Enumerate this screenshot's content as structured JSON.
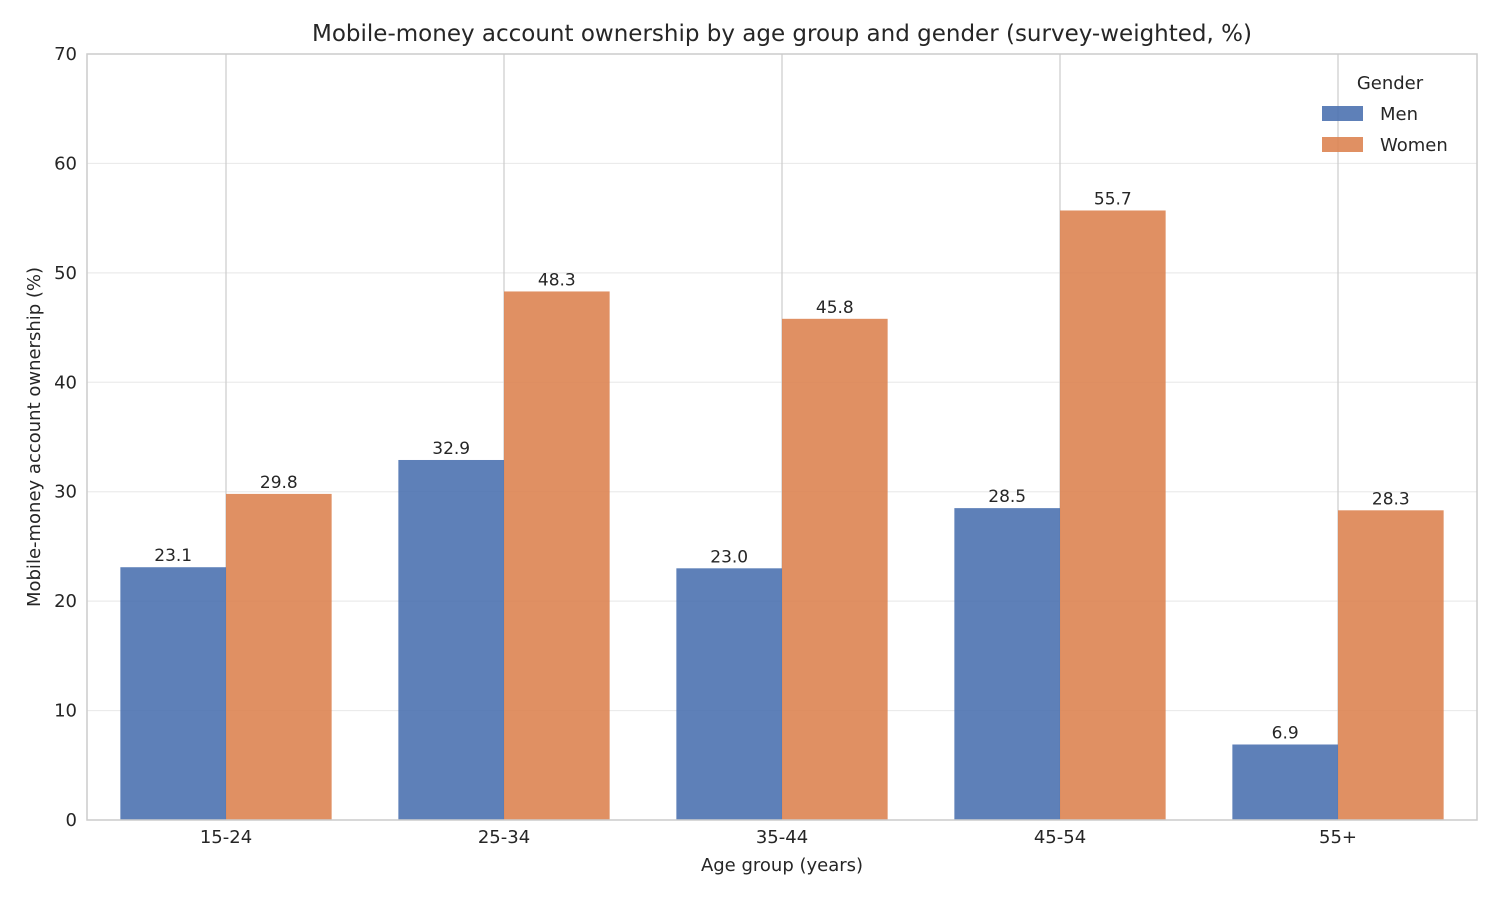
{
  "chart_data": {
    "type": "bar",
    "title": "Mobile-money account ownership by age group and gender (survey-weighted, %)",
    "xlabel": "Age group (years)",
    "ylabel": "Mobile-money account ownership (%)",
    "categories": [
      "15-24",
      "25-34",
      "35-44",
      "45-54",
      "55+"
    ],
    "series": [
      {
        "name": "Men",
        "values": [
          23.1,
          32.9,
          23.0,
          28.5,
          6.9
        ],
        "labels": [
          "23.1",
          "32.9",
          "23.0",
          "28.5",
          "6.9"
        ],
        "color": "#4c72b0"
      },
      {
        "name": "Women",
        "values": [
          29.8,
          48.3,
          45.8,
          55.7,
          28.3
        ],
        "labels": [
          "29.8",
          "48.3",
          "45.8",
          "55.7",
          "28.3"
        ],
        "color": "#dd8452"
      }
    ],
    "ylim": [
      0,
      70
    ],
    "yticks": [
      "0",
      "10",
      "20",
      "30",
      "40",
      "50",
      "60",
      "70"
    ],
    "legend_title": "Gender",
    "legend_position": "top-right",
    "grid": true
  }
}
